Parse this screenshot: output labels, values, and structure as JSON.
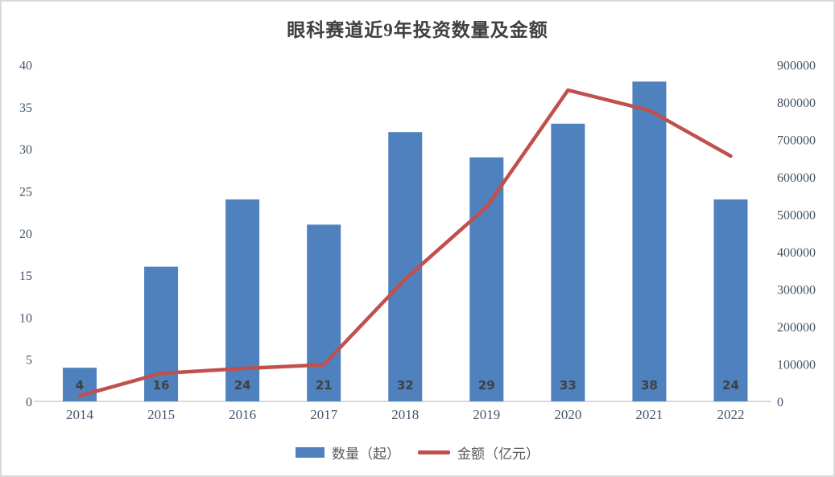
{
  "title": "眼科赛道近9年投资数量及金额",
  "chart_data": {
    "type": "combo",
    "title": "眼科赛道近9年投资数量及金额",
    "categories": [
      "2014",
      "2015",
      "2016",
      "2017",
      "2018",
      "2019",
      "2020",
      "2021",
      "2022"
    ],
    "series": [
      {
        "name": "数量（起）",
        "type": "bar",
        "axis": "left",
        "color": "#4e81bd",
        "values": [
          4,
          16,
          24,
          21,
          32,
          29,
          33,
          38,
          24
        ],
        "data_labels": [
          4,
          16,
          24,
          21,
          32,
          29,
          33,
          38,
          24
        ]
      },
      {
        "name": "金额（亿元）",
        "type": "line",
        "axis": "right",
        "color": "#c0504d",
        "values": [
          15000,
          75000,
          88000,
          98000,
          327000,
          520000,
          832000,
          778000,
          656000
        ]
      }
    ],
    "left_axis": {
      "min": 0,
      "max": 40,
      "step": 5,
      "tick_labels": [
        "0",
        "5",
        "10",
        "15",
        "20",
        "25",
        "30",
        "35",
        "40"
      ]
    },
    "right_axis": {
      "min": 0,
      "max": 900000,
      "step": 100000,
      "tick_labels": [
        "0",
        "100000",
        "200000",
        "300000",
        "400000",
        "500000",
        "600000",
        "700000",
        "800000",
        "900000"
      ]
    },
    "grid": false,
    "legend_position": "bottom"
  },
  "legend": {
    "items": [
      {
        "label": "数量（起）",
        "marker": "bar",
        "color": "#4e81bd"
      },
      {
        "label": "金额（亿元）",
        "marker": "line",
        "color": "#c0504d"
      }
    ]
  },
  "colors": {
    "bar": "#4e81bd",
    "line": "#c0504d",
    "axis_labels": "#44546a",
    "bar_value_labels": "#404040",
    "title": "#3f3f3f",
    "legend_text": "#595959",
    "axis_line": "#d9d9d9",
    "frame_border": "#d9d9d9"
  }
}
